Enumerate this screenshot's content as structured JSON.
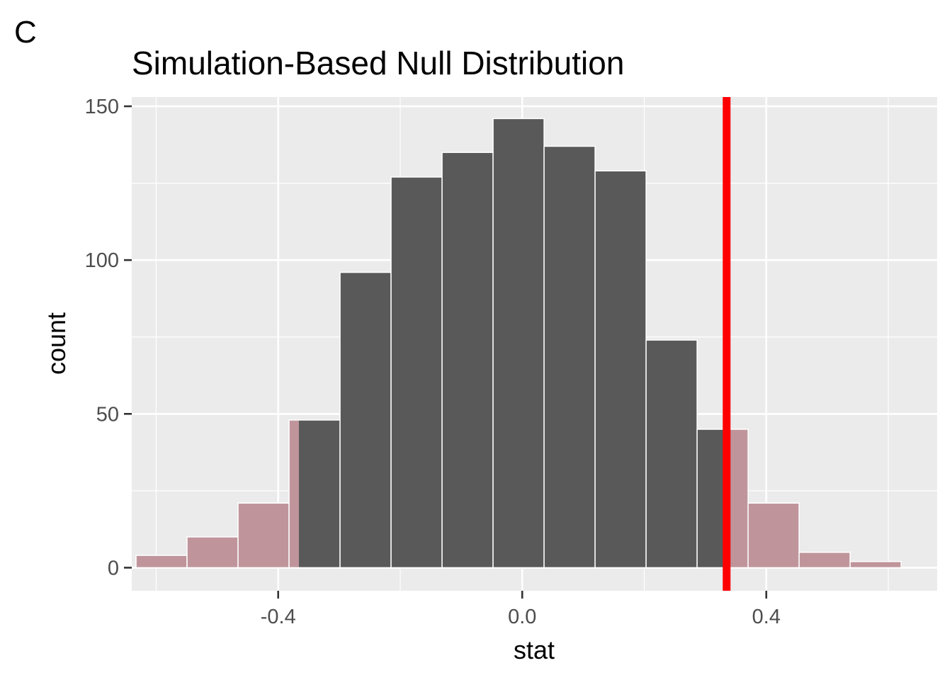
{
  "panel_tag": "C",
  "chart_data": {
    "type": "bar",
    "title": "Simulation-Based Null Distribution",
    "xlabel": "stat",
    "ylabel": "count",
    "xlim": [
      -0.64,
      0.68
    ],
    "ylim": [
      -7.5,
      153
    ],
    "x_ticks": [
      -0.4,
      0.0,
      0.4
    ],
    "x_tick_labels": [
      "-0.4",
      "0.0",
      "0.4"
    ],
    "y_ticks": [
      0,
      50,
      100,
      150
    ],
    "y_tick_labels": [
      "0",
      "50",
      "100",
      "150"
    ],
    "grid": true,
    "legend": "none",
    "bin_width": 0.0836,
    "bin_centers": [
      -0.5912,
      -0.5076,
      -0.424,
      -0.3404,
      -0.2568,
      -0.1732,
      -0.0896,
      -0.006,
      0.0776,
      0.1612,
      0.2448,
      0.3284,
      0.412,
      0.4956,
      0.5792
    ],
    "values": [
      4,
      10,
      21,
      48,
      96,
      127,
      135,
      146,
      137,
      129,
      74,
      45,
      21,
      5,
      2
    ],
    "observed_stat": 0.335,
    "shaded_tails": {
      "left_below": -0.366,
      "right_above": 0.335
    },
    "colors": {
      "bar": "#595959",
      "shaded": "#bf959b",
      "observed_line": "#ff0000",
      "panel_background": "#ebebeb",
      "grid": "#ffffff"
    }
  }
}
